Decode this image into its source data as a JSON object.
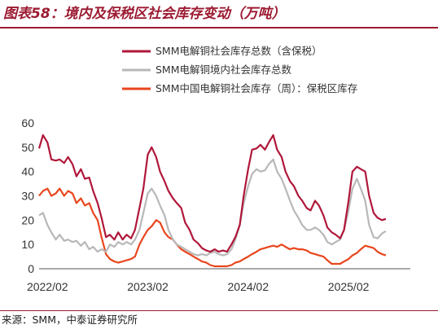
{
  "figure": {
    "title": "图表58：境内及保税区社会库存变动（万吨）",
    "source": "来源：SMM，中泰证券研究所"
  },
  "chart_data": {
    "type": "line",
    "title": "图表58：境内及保税区社会库存变动（万吨）",
    "ylim": [
      0,
      60
    ],
    "yticks": [
      0,
      10,
      20,
      30,
      40,
      50,
      60
    ],
    "xlim": [
      "2022/01",
      "2025/09"
    ],
    "xticks": [
      "2022/02",
      "2023/02",
      "2024/02",
      "2025/02"
    ],
    "grid": false,
    "legend_position": "top-right",
    "series": [
      {
        "name": "SMM电解铜社会库存总数（含保税）",
        "color": "#b0173a",
        "points": [
          [
            "2022/01/01",
            49.5
          ],
          [
            "2022/01/15",
            55
          ],
          [
            "2022/02/01",
            52
          ],
          [
            "2022/02/15",
            45
          ],
          [
            "2022/03/01",
            44.5
          ],
          [
            "2022/03/15",
            45
          ],
          [
            "2022/04/01",
            43.5
          ],
          [
            "2022/04/15",
            46
          ],
          [
            "2022/05/01",
            43
          ],
          [
            "2022/05/15",
            38
          ],
          [
            "2022/06/01",
            41
          ],
          [
            "2022/06/15",
            37
          ],
          [
            "2022/07/01",
            37.5
          ],
          [
            "2022/07/15",
            32
          ],
          [
            "2022/08/01",
            27
          ],
          [
            "2022/08/15",
            21
          ],
          [
            "2022/09/01",
            13
          ],
          [
            "2022/09/15",
            14
          ],
          [
            "2022/10/01",
            12
          ],
          [
            "2022/10/15",
            15
          ],
          [
            "2022/11/01",
            12
          ],
          [
            "2022/11/15",
            14
          ],
          [
            "2022/12/01",
            12.5
          ],
          [
            "2022/12/15",
            16
          ],
          [
            "2023/01/01",
            25
          ],
          [
            "2023/01/15",
            33
          ],
          [
            "2023/02/01",
            47
          ],
          [
            "2023/02/15",
            50
          ],
          [
            "2023/03/01",
            46
          ],
          [
            "2023/03/15",
            40
          ],
          [
            "2023/04/01",
            36
          ],
          [
            "2023/04/15",
            32
          ],
          [
            "2023/05/01",
            29
          ],
          [
            "2023/05/15",
            27
          ],
          [
            "2023/06/01",
            25
          ],
          [
            "2023/06/15",
            19
          ],
          [
            "2023/07/01",
            16
          ],
          [
            "2023/07/15",
            12
          ],
          [
            "2023/08/01",
            10.5
          ],
          [
            "2023/08/15",
            8.5
          ],
          [
            "2023/09/01",
            7.5
          ],
          [
            "2023/09/15",
            7
          ],
          [
            "2023/10/01",
            8
          ],
          [
            "2023/10/15",
            7
          ],
          [
            "2023/11/01",
            7.5
          ],
          [
            "2023/11/15",
            7
          ],
          [
            "2023/12/01",
            10
          ],
          [
            "2023/12/15",
            13
          ],
          [
            "2024/01/01",
            18
          ],
          [
            "2024/01/15",
            30
          ],
          [
            "2024/02/01",
            41
          ],
          [
            "2024/02/15",
            49
          ],
          [
            "2024/03/01",
            49.5
          ],
          [
            "2024/03/15",
            51
          ],
          [
            "2024/04/01",
            49
          ],
          [
            "2024/04/15",
            52
          ],
          [
            "2024/05/01",
            55
          ],
          [
            "2024/05/15",
            49
          ],
          [
            "2024/06/01",
            46
          ],
          [
            "2024/06/15",
            40
          ],
          [
            "2024/07/01",
            36
          ],
          [
            "2024/07/15",
            34
          ],
          [
            "2024/08/01",
            30
          ],
          [
            "2024/08/15",
            28
          ],
          [
            "2024/09/01",
            25
          ],
          [
            "2024/09/15",
            24
          ],
          [
            "2024/10/01",
            28
          ],
          [
            "2024/10/15",
            26
          ],
          [
            "2024/11/01",
            22
          ],
          [
            "2024/11/15",
            17
          ],
          [
            "2024/12/01",
            15
          ],
          [
            "2024/12/15",
            14
          ],
          [
            "2025/01/01",
            12.5
          ],
          [
            "2025/01/15",
            16
          ],
          [
            "2025/02/01",
            28
          ],
          [
            "2025/02/15",
            40
          ],
          [
            "2025/03/01",
            42
          ],
          [
            "2025/03/15",
            41
          ],
          [
            "2025/04/01",
            40
          ],
          [
            "2025/04/15",
            30
          ],
          [
            "2025/05/01",
            23
          ],
          [
            "2025/05/15",
            21
          ],
          [
            "2025/06/01",
            20
          ],
          [
            "2025/06/15",
            20.5
          ]
        ]
      },
      {
        "name": "SMM电解铜境内社会库存总数",
        "color": "#b8b8b8",
        "points": [
          [
            "2022/01/01",
            22
          ],
          [
            "2022/01/15",
            23
          ],
          [
            "2022/02/01",
            18
          ],
          [
            "2022/02/15",
            15
          ],
          [
            "2022/03/01",
            12
          ],
          [
            "2022/03/15",
            14
          ],
          [
            "2022/04/01",
            11.5
          ],
          [
            "2022/04/15",
            12
          ],
          [
            "2022/05/01",
            11
          ],
          [
            "2022/05/15",
            11.5
          ],
          [
            "2022/06/01",
            9.5
          ],
          [
            "2022/06/15",
            11
          ],
          [
            "2022/07/01",
            8
          ],
          [
            "2022/07/15",
            9
          ],
          [
            "2022/08/01",
            7
          ],
          [
            "2022/08/15",
            8
          ],
          [
            "2022/09/01",
            7
          ],
          [
            "2022/09/15",
            10
          ],
          [
            "2022/10/01",
            9
          ],
          [
            "2022/10/15",
            11
          ],
          [
            "2022/11/01",
            10
          ],
          [
            "2022/11/15",
            11
          ],
          [
            "2022/12/01",
            10
          ],
          [
            "2022/12/15",
            12
          ],
          [
            "2023/01/01",
            16
          ],
          [
            "2023/01/15",
            23
          ],
          [
            "2023/02/01",
            31
          ],
          [
            "2023/02/15",
            33
          ],
          [
            "2023/03/01",
            30
          ],
          [
            "2023/03/15",
            26
          ],
          [
            "2023/04/01",
            22
          ],
          [
            "2023/04/15",
            16
          ],
          [
            "2023/05/01",
            12
          ],
          [
            "2023/05/15",
            10
          ],
          [
            "2023/06/01",
            9
          ],
          [
            "2023/06/15",
            8
          ],
          [
            "2023/07/01",
            7
          ],
          [
            "2023/07/15",
            6
          ],
          [
            "2023/08/01",
            5.5
          ],
          [
            "2023/08/15",
            6
          ],
          [
            "2023/09/01",
            5.5
          ],
          [
            "2023/09/15",
            6.5
          ],
          [
            "2023/10/01",
            7
          ],
          [
            "2023/10/15",
            6
          ],
          [
            "2023/11/01",
            5.5
          ],
          [
            "2023/11/15",
            6
          ],
          [
            "2023/12/01",
            8
          ],
          [
            "2023/12/15",
            12
          ],
          [
            "2024/01/01",
            18
          ],
          [
            "2024/01/15",
            27
          ],
          [
            "2024/02/01",
            34
          ],
          [
            "2024/02/15",
            39
          ],
          [
            "2024/03/01",
            41
          ],
          [
            "2024/03/15",
            40
          ],
          [
            "2024/04/01",
            40.5
          ],
          [
            "2024/04/15",
            43
          ],
          [
            "2024/05/01",
            45
          ],
          [
            "2024/05/15",
            40
          ],
          [
            "2024/06/01",
            37
          ],
          [
            "2024/06/15",
            33
          ],
          [
            "2024/07/01",
            28
          ],
          [
            "2024/07/15",
            24
          ],
          [
            "2024/08/01",
            21
          ],
          [
            "2024/08/15",
            18
          ],
          [
            "2024/09/01",
            16
          ],
          [
            "2024/09/15",
            16
          ],
          [
            "2024/10/01",
            17
          ],
          [
            "2024/10/15",
            16
          ],
          [
            "2024/11/01",
            14
          ],
          [
            "2024/11/15",
            11
          ],
          [
            "2024/12/01",
            10
          ],
          [
            "2024/12/15",
            11
          ],
          [
            "2025/01/01",
            12
          ],
          [
            "2025/01/15",
            16
          ],
          [
            "2025/02/01",
            24
          ],
          [
            "2025/02/15",
            33
          ],
          [
            "2025/03/01",
            37
          ],
          [
            "2025/03/15",
            33
          ],
          [
            "2025/04/01",
            28
          ],
          [
            "2025/04/15",
            18
          ],
          [
            "2025/05/01",
            13
          ],
          [
            "2025/05/15",
            12.5
          ],
          [
            "2025/06/01",
            14.5
          ],
          [
            "2025/06/15",
            15.5
          ]
        ]
      },
      {
        "name": "SMM中国电解铜社会库存（周）：保税区库存",
        "color": "#e8461e",
        "points": [
          [
            "2022/01/01",
            30
          ],
          [
            "2022/01/15",
            32
          ],
          [
            "2022/02/01",
            33
          ],
          [
            "2022/02/15",
            30
          ],
          [
            "2022/03/01",
            31
          ],
          [
            "2022/03/15",
            33
          ],
          [
            "2022/04/01",
            30
          ],
          [
            "2022/04/15",
            32
          ],
          [
            "2022/05/01",
            31
          ],
          [
            "2022/05/15",
            27
          ],
          [
            "2022/06/01",
            29
          ],
          [
            "2022/06/15",
            26
          ],
          [
            "2022/07/01",
            27
          ],
          [
            "2022/07/15",
            23
          ],
          [
            "2022/08/01",
            20
          ],
          [
            "2022/08/15",
            13
          ],
          [
            "2022/09/01",
            6
          ],
          [
            "2022/09/15",
            4
          ],
          [
            "2022/10/01",
            3
          ],
          [
            "2022/10/15",
            2.5
          ],
          [
            "2022/11/01",
            3
          ],
          [
            "2022/11/15",
            3.5
          ],
          [
            "2022/12/01",
            4
          ],
          [
            "2022/12/15",
            5
          ],
          [
            "2023/01/01",
            10
          ],
          [
            "2023/01/15",
            13
          ],
          [
            "2023/02/01",
            16
          ],
          [
            "2023/02/15",
            17.5
          ],
          [
            "2023/03/01",
            20
          ],
          [
            "2023/03/15",
            19
          ],
          [
            "2023/04/01",
            15
          ],
          [
            "2023/04/15",
            13
          ],
          [
            "2023/05/01",
            12
          ],
          [
            "2023/05/15",
            10
          ],
          [
            "2023/06/01",
            8
          ],
          [
            "2023/06/15",
            7
          ],
          [
            "2023/07/01",
            6
          ],
          [
            "2023/07/15",
            5
          ],
          [
            "2023/08/01",
            4
          ],
          [
            "2023/08/15",
            3
          ],
          [
            "2023/09/01",
            2.5
          ],
          [
            "2023/09/15",
            1.5
          ],
          [
            "2023/10/01",
            1
          ],
          [
            "2023/10/15",
            1
          ],
          [
            "2023/11/01",
            1
          ],
          [
            "2023/11/15",
            1
          ],
          [
            "2023/12/01",
            1.5
          ],
          [
            "2023/12/15",
            2.5
          ],
          [
            "2024/01/01",
            3
          ],
          [
            "2024/01/15",
            4
          ],
          [
            "2024/02/01",
            5
          ],
          [
            "2024/02/15",
            6
          ],
          [
            "2024/03/01",
            7
          ],
          [
            "2024/03/15",
            8
          ],
          [
            "2024/04/01",
            8.5
          ],
          [
            "2024/04/15",
            9
          ],
          [
            "2024/05/01",
            9.5
          ],
          [
            "2024/05/15",
            9
          ],
          [
            "2024/06/01",
            10
          ],
          [
            "2024/06/15",
            9
          ],
          [
            "2024/07/01",
            8
          ],
          [
            "2024/07/15",
            8.5
          ],
          [
            "2024/08/01",
            8
          ],
          [
            "2024/08/15",
            8
          ],
          [
            "2024/09/01",
            7.5
          ],
          [
            "2024/09/15",
            6.5
          ],
          [
            "2024/10/01",
            6
          ],
          [
            "2024/10/15",
            5.5
          ],
          [
            "2024/11/01",
            5
          ],
          [
            "2024/11/15",
            3.5
          ],
          [
            "2024/12/01",
            2
          ],
          [
            "2024/12/15",
            2
          ],
          [
            "2025/01/01",
            2
          ],
          [
            "2025/01/15",
            3
          ],
          [
            "2025/02/01",
            4
          ],
          [
            "2025/02/15",
            5.5
          ],
          [
            "2025/03/01",
            6.5
          ],
          [
            "2025/03/15",
            8
          ],
          [
            "2025/04/01",
            9.5
          ],
          [
            "2025/04/15",
            9
          ],
          [
            "2025/05/01",
            8.5
          ],
          [
            "2025/05/15",
            7
          ],
          [
            "2025/06/01",
            6
          ],
          [
            "2025/06/15",
            5.5
          ]
        ]
      }
    ]
  }
}
